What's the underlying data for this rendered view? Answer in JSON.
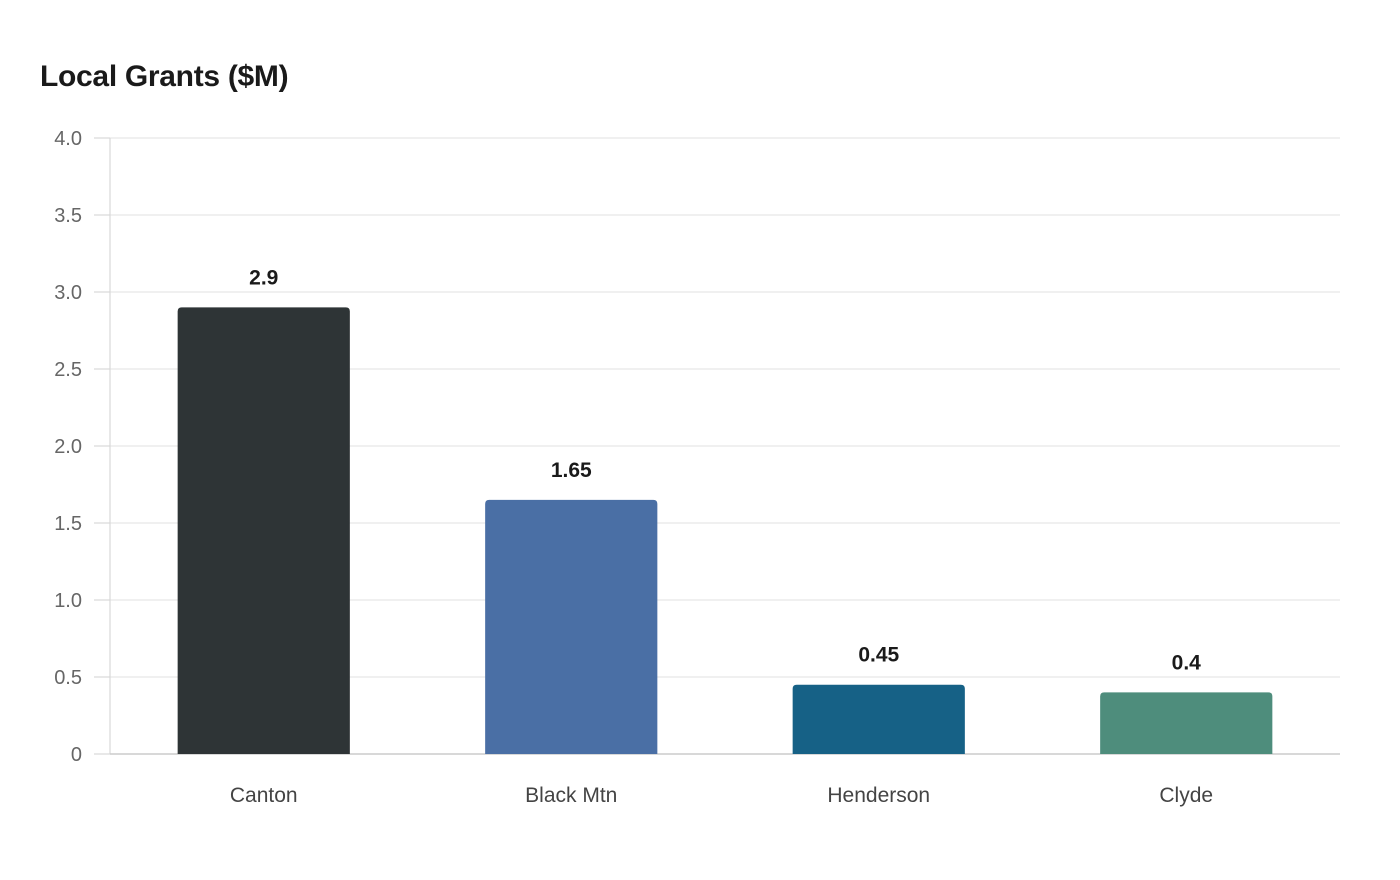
{
  "chart_data": {
    "type": "bar",
    "title": "Local Grants ($M)",
    "xlabel": "",
    "ylabel": "",
    "categories": [
      "Canton",
      "Black Mtn",
      "Henderson",
      "Clyde"
    ],
    "values": [
      2.9,
      1.65,
      0.45,
      0.4
    ],
    "value_labels": [
      "2.9",
      "1.65",
      "0.45",
      "0.4"
    ],
    "colors": [
      "#2e3436",
      "#4a6fa5",
      "#166186",
      "#4e8d7c"
    ],
    "ylim": [
      0,
      4.0
    ],
    "y_ticks": [
      0,
      0.5,
      1.0,
      1.5,
      2.0,
      2.5,
      3.0,
      3.5,
      4.0
    ],
    "y_tick_labels": [
      "0",
      "0.5",
      "1.0",
      "1.5",
      "2.0",
      "2.5",
      "3.0",
      "3.5",
      "4.0"
    ],
    "grid": true,
    "legend": "none"
  }
}
